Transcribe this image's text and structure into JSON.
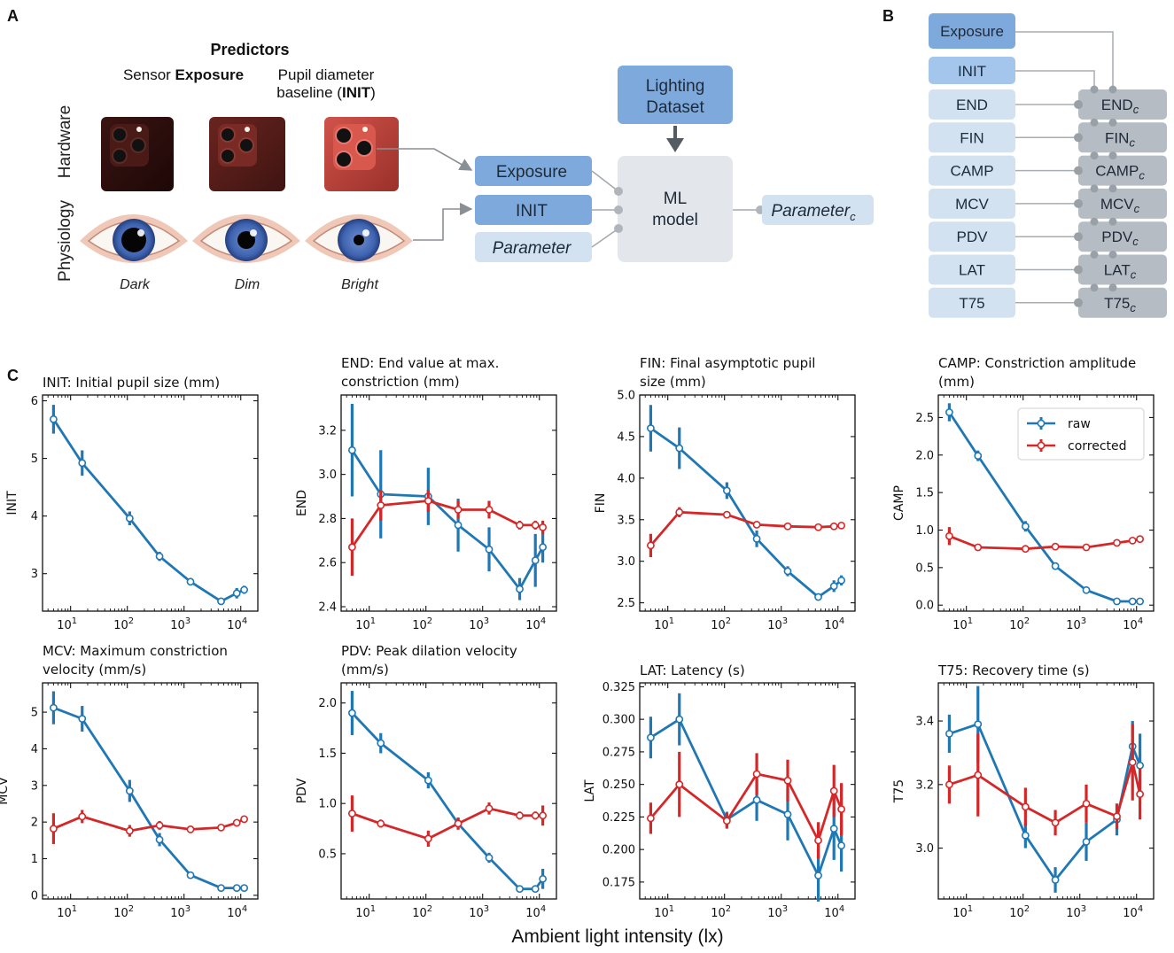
{
  "panels": {
    "A": "A",
    "B": "B",
    "C": "C"
  },
  "panel_a": {
    "predictors_title": "Predictors",
    "col1_prefix": "Sensor ",
    "col1_bold": "Exposure",
    "col2_line1": "Pupil diameter",
    "col2_line2_prefix": "baseline (",
    "col2_line2_bold": "INIT",
    "col2_line2_suffix": ")",
    "row_hardware": "Hardware",
    "row_physiology": "Physiology",
    "conditions": [
      "Dark",
      "Dim",
      "Bright"
    ],
    "box_exposure": "Exposure",
    "box_init": "INIT",
    "box_parameter": "Parameter",
    "lighting_line1": "Lighting",
    "lighting_line2": "Dataset",
    "ml_line1": "ML",
    "ml_line2": "model",
    "output_main": "Parameter",
    "output_sub": "c"
  },
  "panel_b": {
    "exposure": "Exposure",
    "init": "INIT",
    "params": [
      "END",
      "FIN",
      "CAMP",
      "MCV",
      "PDV",
      "LAT",
      "T75"
    ],
    "corrected_suffix": "c"
  },
  "colors": {
    "raw": "#1f77b4",
    "corrected": "#d62728",
    "box_dark": "#7ea9dc",
    "box_mid": "#a4c6ec",
    "box_light": "#d2e2f1",
    "box_gray": "#b6bcc4",
    "ml_box": "#e3e6ea"
  },
  "icons": {
    "phone": "phone-camera-icon",
    "eye": "eye-icon"
  },
  "chart_data": [
    {
      "type": "line",
      "title": "INIT: Initial pupil size (mm)",
      "ylabel": "INIT",
      "xlabel": "Ambient light intensity (lx)",
      "xscale": "log",
      "xlim": [
        3.2,
        20000
      ],
      "ylim": [
        2.35,
        6.1
      ],
      "yticks": [
        3,
        4,
        5,
        6
      ],
      "ytick_labels": [
        "3",
        "4",
        "5",
        "6"
      ],
      "series": [
        {
          "name": "raw",
          "x": [
            5,
            16,
            110,
            370,
            1300,
            4500,
            8500,
            11500
          ],
          "y": [
            5.68,
            4.92,
            3.96,
            3.3,
            2.86,
            2.52,
            2.66,
            2.72
          ],
          "err": [
            0.25,
            0.22,
            0.12,
            0.08,
            0.05,
            0.04,
            0.09,
            0.07
          ]
        }
      ]
    },
    {
      "type": "line",
      "title": "END: End value at max. constriction (mm)",
      "ylabel": "END",
      "xlabel": "Ambient light intensity (lx)",
      "xscale": "log",
      "xlim": [
        3.2,
        20000
      ],
      "ylim": [
        2.38,
        3.36
      ],
      "yticks": [
        2.4,
        2.6,
        2.8,
        3.0,
        3.2
      ],
      "ytick_labels": [
        "2.4",
        "2.6",
        "2.8",
        "3.0",
        "3.2"
      ],
      "series": [
        {
          "name": "raw",
          "x": [
            5,
            16,
            110,
            370,
            1300,
            4500,
            8500,
            11500
          ],
          "y": [
            3.11,
            2.91,
            2.9,
            2.77,
            2.66,
            2.48,
            2.61,
            2.67
          ],
          "err": [
            0.21,
            0.2,
            0.13,
            0.12,
            0.1,
            0.05,
            0.12,
            0.07
          ]
        },
        {
          "name": "corrected",
          "x": [
            5,
            16,
            110,
            370,
            1300,
            4500,
            8500,
            11500
          ],
          "y": [
            2.67,
            2.86,
            2.88,
            2.84,
            2.84,
            2.77,
            2.77,
            2.76
          ],
          "err": [
            0.13,
            0.07,
            0.05,
            0.04,
            0.04,
            0.02,
            0.02,
            0.03
          ]
        }
      ]
    },
    {
      "type": "line",
      "title": "FIN: Final asymptotic pupil size (mm)",
      "ylabel": "FIN",
      "xlabel": "Ambient light intensity (lx)",
      "xscale": "log",
      "xlim": [
        3.2,
        20000
      ],
      "ylim": [
        2.4,
        5.0
      ],
      "yticks": [
        2.5,
        3.0,
        3.5,
        4.0,
        4.5,
        5.0
      ],
      "ytick_labels": [
        "2.5",
        "3.0",
        "3.5",
        "4.0",
        "4.5",
        "5.0"
      ],
      "series": [
        {
          "name": "raw",
          "x": [
            5,
            16,
            110,
            370,
            1300,
            4500,
            8500,
            11500
          ],
          "y": [
            4.6,
            4.36,
            3.85,
            3.27,
            2.88,
            2.57,
            2.7,
            2.77
          ],
          "err": [
            0.28,
            0.25,
            0.1,
            0.1,
            0.06,
            0.03,
            0.07,
            0.06
          ]
        },
        {
          "name": "corrected",
          "x": [
            5,
            16,
            110,
            370,
            1300,
            4500,
            8500,
            11500
          ],
          "y": [
            3.19,
            3.59,
            3.56,
            3.44,
            3.42,
            3.41,
            3.42,
            3.43
          ],
          "err": [
            0.14,
            0.06,
            0.03,
            0.03,
            0.02,
            0.02,
            0.02,
            0.02
          ]
        }
      ]
    },
    {
      "type": "line",
      "title": "CAMP: Constriction amplitude (mm)",
      "ylabel": "CAMP",
      "xlabel": "Ambient light intensity (lx)",
      "xscale": "log",
      "xlim": [
        3.2,
        20000
      ],
      "ylim": [
        -0.08,
        2.8
      ],
      "yticks": [
        0.0,
        0.5,
        1.0,
        1.5,
        2.0,
        2.5
      ],
      "ytick_labels": [
        "0.0",
        "0.5",
        "1.0",
        "1.5",
        "2.0",
        "2.5"
      ],
      "series": [
        {
          "name": "raw",
          "x": [
            5,
            16,
            110,
            370,
            1300,
            4500,
            8500,
            11500
          ],
          "y": [
            2.57,
            1.99,
            1.05,
            0.52,
            0.2,
            0.05,
            0.05,
            0.05
          ],
          "err": [
            0.12,
            0.07,
            0.07,
            0.03,
            0.02,
            0.01,
            0.01,
            0.01
          ]
        },
        {
          "name": "corrected",
          "x": [
            5,
            16,
            110,
            370,
            1300,
            4500,
            8500,
            11500
          ],
          "y": [
            0.92,
            0.77,
            0.75,
            0.78,
            0.77,
            0.83,
            0.86,
            0.88
          ],
          "err": [
            0.12,
            0.03,
            0.03,
            0.03,
            0.03,
            0.03,
            0.03,
            0.03
          ]
        }
      ]
    },
    {
      "type": "line",
      "title": "MCV: Maximum constriction velocity (mm/s)",
      "ylabel": "MCV",
      "xlabel": "Ambient light intensity (lx)",
      "xscale": "log",
      "xlim": [
        3.2,
        20000
      ],
      "ylim": [
        -0.1,
        5.8
      ],
      "yticks": [
        0,
        1,
        2,
        3,
        4,
        5
      ],
      "ytick_labels": [
        "0",
        "1",
        "2",
        "3",
        "4",
        "5"
      ],
      "series": [
        {
          "name": "raw",
          "x": [
            5,
            16,
            110,
            370,
            1300,
            4500,
            8500,
            11500
          ],
          "y": [
            5.12,
            4.82,
            2.85,
            1.52,
            0.55,
            0.2,
            0.2,
            0.2
          ],
          "err": [
            0.45,
            0.35,
            0.3,
            0.18,
            0.06,
            0.03,
            0.03,
            0.03
          ]
        },
        {
          "name": "corrected",
          "x": [
            5,
            16,
            110,
            370,
            1300,
            4500,
            8500,
            11500
          ],
          "y": [
            1.82,
            2.15,
            1.76,
            1.91,
            1.8,
            1.85,
            1.98,
            2.08
          ],
          "err": [
            0.42,
            0.18,
            0.16,
            0.12,
            0.08,
            0.08,
            0.1,
            0.08
          ]
        }
      ]
    },
    {
      "type": "line",
      "title": "PDV: Peak dilation velocity (mm/s)",
      "ylabel": "PDV",
      "xlabel": "Ambient light intensity (lx)",
      "xscale": "log",
      "xlim": [
        3.2,
        20000
      ],
      "ylim": [
        0.05,
        2.2
      ],
      "yticks": [
        0.5,
        1.0,
        1.5,
        2.0
      ],
      "ytick_labels": [
        "0.5",
        "1.0",
        "1.5",
        "2.0"
      ],
      "series": [
        {
          "name": "raw",
          "x": [
            5,
            16,
            110,
            370,
            1300,
            4500,
            8500,
            11500
          ],
          "y": [
            1.9,
            1.6,
            1.23,
            0.8,
            0.46,
            0.15,
            0.15,
            0.25
          ],
          "err": [
            0.22,
            0.1,
            0.08,
            0.06,
            0.05,
            0.03,
            0.03,
            0.1
          ]
        },
        {
          "name": "corrected",
          "x": [
            5,
            16,
            110,
            370,
            1300,
            4500,
            8500,
            11500
          ],
          "y": [
            0.9,
            0.8,
            0.65,
            0.8,
            0.95,
            0.88,
            0.88,
            0.88
          ],
          "err": [
            0.18,
            0.04,
            0.08,
            0.06,
            0.06,
            0.04,
            0.04,
            0.1
          ]
        }
      ]
    },
    {
      "type": "line",
      "title": "LAT: Latency (s)",
      "ylabel": "LAT",
      "xlabel": "Ambient light intensity (lx)",
      "xscale": "log",
      "xlim": [
        3.2,
        20000
      ],
      "ylim": [
        0.162,
        0.328
      ],
      "yticks": [
        0.175,
        0.2,
        0.225,
        0.25,
        0.275,
        0.3,
        0.325
      ],
      "ytick_labels": [
        "0.175",
        "0.200",
        "0.225",
        "0.250",
        "0.275",
        "0.300",
        "0.325"
      ],
      "series": [
        {
          "name": "raw",
          "x": [
            5,
            16,
            110,
            370,
            1300,
            4500,
            8500,
            11500
          ],
          "y": [
            0.286,
            0.3,
            0.223,
            0.238,
            0.227,
            0.18,
            0.216,
            0.203
          ],
          "err": [
            0.016,
            0.02,
            0.006,
            0.016,
            0.02,
            0.02,
            0.024,
            0.02
          ]
        },
        {
          "name": "corrected",
          "x": [
            5,
            16,
            110,
            370,
            1300,
            4500,
            8500,
            11500
          ],
          "y": [
            0.224,
            0.25,
            0.222,
            0.258,
            0.253,
            0.207,
            0.245,
            0.231
          ],
          "err": [
            0.012,
            0.025,
            0.006,
            0.016,
            0.016,
            0.014,
            0.02,
            0.02
          ]
        }
      ]
    },
    {
      "type": "line",
      "title": "T75: Recovery time (s)",
      "ylabel": "T75",
      "xlabel": "Ambient light intensity (lx)",
      "xscale": "log",
      "xlim": [
        3.2,
        20000
      ],
      "ylim": [
        2.84,
        3.52
      ],
      "yticks": [
        3.0,
        3.2,
        3.4
      ],
      "ytick_labels": [
        "3.0",
        "3.2",
        "3.4"
      ],
      "series": [
        {
          "name": "raw",
          "x": [
            5,
            16,
            110,
            370,
            1300,
            4500,
            8500,
            11500
          ],
          "y": [
            3.36,
            3.39,
            3.04,
            2.9,
            3.02,
            3.09,
            3.32,
            3.26
          ],
          "err": [
            0.06,
            0.12,
            0.04,
            0.04,
            0.06,
            0.05,
            0.08,
            0.1
          ]
        },
        {
          "name": "corrected",
          "x": [
            5,
            16,
            110,
            370,
            1300,
            4500,
            8500,
            11500
          ],
          "y": [
            3.2,
            3.23,
            3.13,
            3.08,
            3.14,
            3.1,
            3.27,
            3.17
          ],
          "err": [
            0.06,
            0.13,
            0.06,
            0.04,
            0.06,
            0.04,
            0.12,
            0.08
          ]
        }
      ]
    }
  ],
  "legend": {
    "raw": "raw",
    "corrected": "corrected"
  },
  "xtick_labels": {
    "e1": "10",
    "e2": "10",
    "e3": "10",
    "e4": "10",
    "sup1": "1",
    "sup2": "2",
    "sup3": "3",
    "sup4": "4"
  },
  "shared_xlabel": "Ambient light intensity (lx)"
}
